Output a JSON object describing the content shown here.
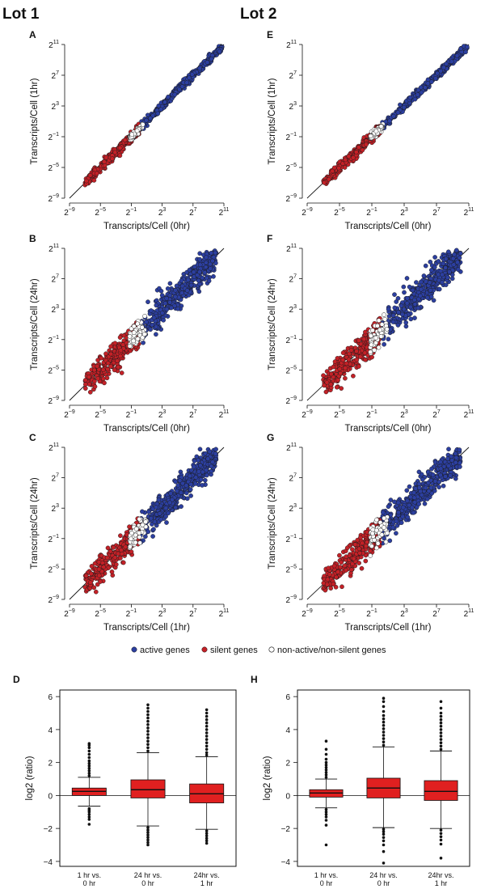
{
  "lot_labels": [
    "Lot 1",
    "Lot 2"
  ],
  "legend": {
    "active": "active genes",
    "silent": "silent genes",
    "other": "non-active/non-silent genes"
  },
  "colors": {
    "active": "#2c3fa0",
    "silent": "#c42127",
    "other": "#ffffff",
    "box": "#e02020"
  },
  "chart_data": [
    {
      "panel": "A",
      "type": "scatter",
      "xlabel": "Transcripts/Cell (0hr)",
      "ylabel": "Transcripts/Cell (1hr)",
      "x_scale": "log2",
      "y_scale": "log2",
      "xlim_exp": [
        -9,
        11
      ],
      "ylim_exp": [
        -9,
        11
      ],
      "ticks_exp": [
        -9,
        -5,
        -1,
        3,
        7,
        11
      ],
      "identity_line": true,
      "series": [
        {
          "name": "active genes",
          "x_exp_range": [
            -1,
            11
          ],
          "spread": 0.45
        },
        {
          "name": "silent genes",
          "x_exp_range": [
            -7,
            0
          ],
          "spread": 0.6
        },
        {
          "name": "non-active/non-silent genes",
          "x_exp_range": [
            -1.2,
            0.5
          ],
          "spread": 0.4
        }
      ]
    },
    {
      "panel": "B",
      "type": "scatter",
      "xlabel": "Transcripts/Cell (0hr)",
      "ylabel": "Transcripts/Cell (24hr)",
      "x_scale": "log2",
      "y_scale": "log2",
      "xlim_exp": [
        -9,
        11
      ],
      "ylim_exp": [
        -9,
        11
      ],
      "ticks_exp": [
        -9,
        -5,
        -1,
        3,
        7,
        11
      ],
      "identity_line": true,
      "series": [
        {
          "name": "active genes",
          "x_exp_range": [
            0,
            10
          ],
          "spread": 1.8
        },
        {
          "name": "silent genes",
          "x_exp_range": [
            -7,
            0
          ],
          "spread": 1.6
        },
        {
          "name": "non-active/non-silent genes",
          "x_exp_range": [
            -1.2,
            1
          ],
          "spread": 1.5
        }
      ]
    },
    {
      "panel": "C",
      "type": "scatter",
      "xlabel": "Transcripts/Cell (1hr)",
      "ylabel": "Transcripts/Cell (24hr)",
      "x_scale": "log2",
      "y_scale": "log2",
      "xlim_exp": [
        -9,
        11
      ],
      "ylim_exp": [
        -9,
        11
      ],
      "ticks_exp": [
        -9,
        -5,
        -1,
        3,
        7,
        11
      ],
      "identity_line": true,
      "series": [
        {
          "name": "active genes",
          "x_exp_range": [
            0,
            10
          ],
          "spread": 1.7
        },
        {
          "name": "silent genes",
          "x_exp_range": [
            -7,
            0
          ],
          "spread": 1.6
        },
        {
          "name": "non-active/non-silent genes",
          "x_exp_range": [
            -1.2,
            1
          ],
          "spread": 1.4
        }
      ]
    },
    {
      "panel": "E",
      "type": "scatter",
      "xlabel": "Transcripts/Cell (0hr)",
      "ylabel": "Transcripts/Cell (1hr)",
      "x_scale": "log2",
      "y_scale": "log2",
      "xlim_exp": [
        -9,
        11
      ],
      "ylim_exp": [
        -9,
        11
      ],
      "ticks_exp": [
        -9,
        -5,
        -1,
        3,
        7,
        11
      ],
      "identity_line": true,
      "series": [
        {
          "name": "active genes",
          "x_exp_range": [
            -1,
            11
          ],
          "spread": 0.45
        },
        {
          "name": "silent genes",
          "x_exp_range": [
            -7,
            0
          ],
          "spread": 0.6
        },
        {
          "name": "non-active/non-silent genes",
          "x_exp_range": [
            -1.2,
            0.5
          ],
          "spread": 0.4
        }
      ]
    },
    {
      "panel": "F",
      "type": "scatter",
      "xlabel": "Transcripts/Cell (0hr)",
      "ylabel": "Transcripts/Cell (24hr)",
      "x_scale": "log2",
      "y_scale": "log2",
      "xlim_exp": [
        -9,
        11
      ],
      "ylim_exp": [
        -9,
        11
      ],
      "ticks_exp": [
        -9,
        -5,
        -1,
        3,
        7,
        11
      ],
      "identity_line": true,
      "series": [
        {
          "name": "active genes",
          "x_exp_range": [
            0,
            10
          ],
          "spread": 1.9
        },
        {
          "name": "silent genes",
          "x_exp_range": [
            -7,
            0
          ],
          "spread": 1.7
        },
        {
          "name": "non-active/non-silent genes",
          "x_exp_range": [
            -1.2,
            1
          ],
          "spread": 1.5
        }
      ]
    },
    {
      "panel": "G",
      "type": "scatter",
      "xlabel": "Transcripts/Cell (1hr)",
      "ylabel": "Transcripts/Cell (24hr)",
      "x_scale": "log2",
      "y_scale": "log2",
      "xlim_exp": [
        -9,
        11
      ],
      "ylim_exp": [
        -9,
        11
      ],
      "ticks_exp": [
        -9,
        -5,
        -1,
        3,
        7,
        11
      ],
      "identity_line": true,
      "series": [
        {
          "name": "active genes",
          "x_exp_range": [
            0,
            10
          ],
          "spread": 1.8
        },
        {
          "name": "silent genes",
          "x_exp_range": [
            -7,
            0
          ],
          "spread": 1.7
        },
        {
          "name": "non-active/non-silent genes",
          "x_exp_range": [
            -1.2,
            1
          ],
          "spread": 1.5
        }
      ]
    },
    {
      "panel": "D",
      "type": "box",
      "ylabel": "log2 (ratio)",
      "ylim": [
        -4.3,
        6.4
      ],
      "yticks": [
        -4,
        -2,
        0,
        2,
        4,
        6
      ],
      "categories": [
        [
          "1 hr vs.",
          "0 hr"
        ],
        [
          "24 hr vs.",
          "0 hr"
        ],
        [
          "24hr vs.",
          "1 hr"
        ]
      ],
      "boxes": [
        {
          "q1": 0.0,
          "median": 0.25,
          "q3": 0.45,
          "whisker_low": -0.65,
          "whisker_high": 1.1,
          "outliers_low": [
            -0.8,
            -0.9,
            -1.0,
            -1.15,
            -1.3,
            -1.45,
            -1.75
          ],
          "outliers_high": [
            1.2,
            1.35,
            1.5,
            1.65,
            1.8,
            1.95,
            2.1,
            2.3,
            2.5,
            2.7,
            2.9,
            3.05,
            3.15
          ]
        },
        {
          "q1": -0.15,
          "median": 0.35,
          "q3": 0.95,
          "whisker_low": -1.85,
          "whisker_high": 2.6,
          "outliers_low": [
            -1.95,
            -2.1,
            -2.25,
            -2.4,
            -2.55,
            -2.7,
            -2.85,
            -3.0
          ],
          "outliers_high": [
            2.7,
            2.9,
            3.1,
            3.3,
            3.5,
            3.7,
            3.9,
            4.1,
            4.3,
            4.5,
            4.7,
            4.9,
            5.1,
            5.3,
            5.5
          ]
        },
        {
          "q1": -0.45,
          "median": 0.1,
          "q3": 0.7,
          "whisker_low": -2.05,
          "whisker_high": 2.35,
          "outliers_low": [
            -2.15,
            -2.3,
            -2.45,
            -2.6,
            -2.75,
            -2.9
          ],
          "outliers_high": [
            2.45,
            2.6,
            2.8,
            3.0,
            3.2,
            3.4,
            3.6,
            3.8,
            4.0,
            4.2,
            4.4,
            4.6,
            4.8,
            5.0,
            5.2
          ]
        }
      ]
    },
    {
      "panel": "H",
      "type": "box",
      "ylabel": "log2 (ratio)",
      "ylim": [
        -4.3,
        6.4
      ],
      "yticks": [
        -4,
        -2,
        0,
        2,
        4,
        6
      ],
      "categories": [
        [
          "1 hr vs.",
          "0 hr"
        ],
        [
          "24 hr vs.",
          "0 hr"
        ],
        [
          "24hr vs.",
          "1 hr"
        ]
      ],
      "boxes": [
        {
          "q1": -0.1,
          "median": 0.15,
          "q3": 0.35,
          "whisker_low": -0.75,
          "whisker_high": 1.0,
          "outliers_low": [
            -0.85,
            -1.0,
            -1.15,
            -1.3,
            -1.5,
            -1.8,
            -3.0
          ],
          "outliers_high": [
            1.1,
            1.25,
            1.4,
            1.55,
            1.7,
            1.85,
            2.0,
            2.2,
            2.5,
            2.8,
            3.3
          ]
        },
        {
          "q1": -0.15,
          "median": 0.45,
          "q3": 1.05,
          "whisker_low": -1.95,
          "whisker_high": 2.95,
          "outliers_low": [
            -2.05,
            -2.2,
            -2.35,
            -2.55,
            -2.75,
            -3.0,
            -3.4,
            -4.1
          ],
          "outliers_high": [
            3.05,
            3.25,
            3.45,
            3.65,
            3.85,
            4.05,
            4.25,
            4.45,
            4.65,
            4.85,
            5.1,
            5.4,
            5.7,
            5.9
          ]
        },
        {
          "q1": -0.3,
          "median": 0.25,
          "q3": 0.9,
          "whisker_low": -2.0,
          "whisker_high": 2.7,
          "outliers_low": [
            -2.1,
            -2.3,
            -2.5,
            -2.7,
            -2.95,
            -3.8
          ],
          "outliers_high": [
            2.8,
            3.0,
            3.2,
            3.4,
            3.6,
            3.8,
            4.0,
            4.2,
            4.4,
            4.6,
            4.8,
            5.0,
            5.3,
            5.7
          ]
        }
      ]
    }
  ]
}
